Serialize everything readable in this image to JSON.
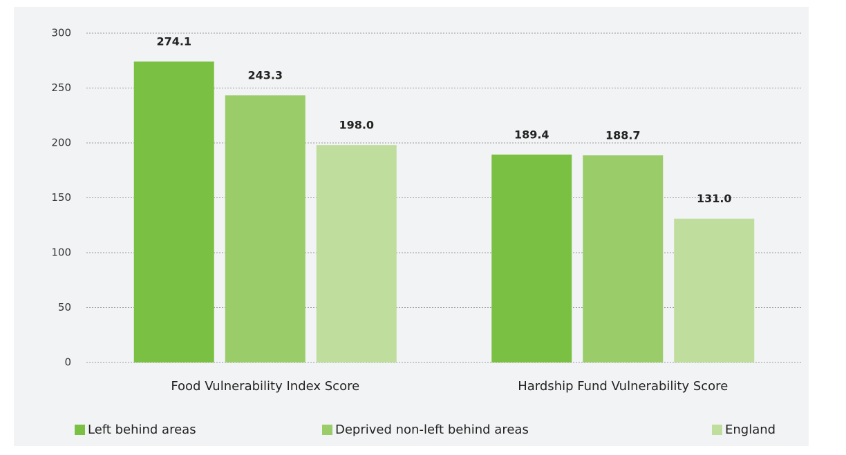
{
  "chart_data": {
    "type": "bar",
    "categories": [
      "Food Vulnerability Index Score",
      "Hardship Fund Vulnerability Score"
    ],
    "series": [
      {
        "name": "Left behind areas",
        "color": "#7ac143",
        "values": [
          274.1,
          189.4
        ],
        "value_labels": [
          "274.1",
          "189.4"
        ]
      },
      {
        "name": "Deprived non-left behind areas",
        "color": "#9bcc6a",
        "values": [
          243.3,
          188.7
        ],
        "value_labels": [
          "243.3",
          "188.7"
        ]
      },
      {
        "name": "England",
        "color": "#bfdd9c",
        "values": [
          198.0,
          131.0
        ],
        "value_labels": [
          "198.0",
          "131.0"
        ]
      }
    ],
    "ylim": [
      0,
      300
    ],
    "yticks": [
      0,
      50,
      100,
      150,
      200,
      250,
      300
    ],
    "grid": true,
    "legend": "bottom"
  }
}
